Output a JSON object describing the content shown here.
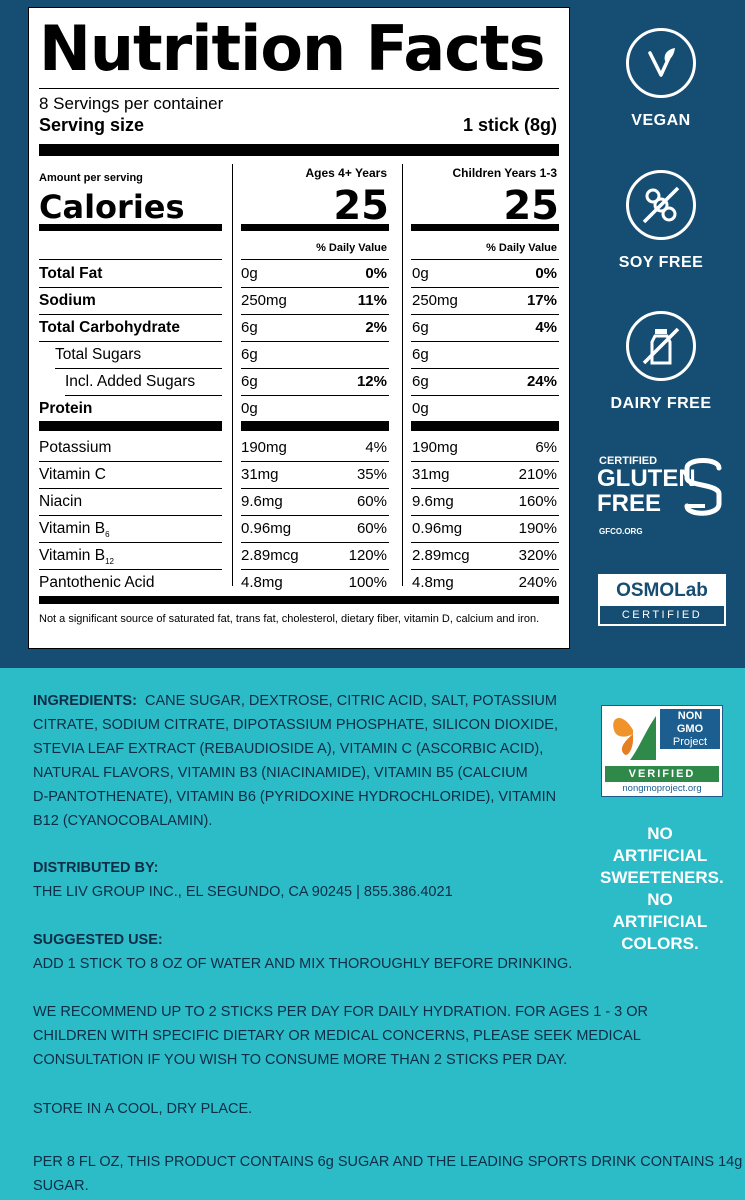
{
  "label": {
    "title": "Nutrition Facts",
    "servings": "8 Servings per container",
    "serving_size_label": "Serving size",
    "serving_size_value": "1 stick (8g)",
    "amount_per_serving": "Amount per serving",
    "calories_label": "Calories",
    "columns": [
      {
        "header": "Ages 4+ Years",
        "calories": "25",
        "dv_header": "% Daily Value"
      },
      {
        "header": "Children Years 1-3",
        "calories": "25",
        "dv_header": "% Daily Value"
      }
    ],
    "rows": [
      {
        "name": "Total Fat",
        "amt1": "0g",
        "pct1": "0%",
        "amt2": "0g",
        "pct2": "0%"
      },
      {
        "name": "Sodium",
        "amt1": "250mg",
        "pct1": "11%",
        "amt2": "250mg",
        "pct2": "17%"
      },
      {
        "name": "Total Carbohydrate",
        "amt1": "6g",
        "pct1": "2%",
        "amt2": "6g",
        "pct2": "4%"
      },
      {
        "name": "Total Sugars",
        "amt1": "6g",
        "pct1": "",
        "amt2": "6g",
        "pct2": ""
      },
      {
        "name": "Incl. Added Sugars",
        "amt1": "6g",
        "pct1": "12%",
        "amt2": "6g",
        "pct2": "24%"
      },
      {
        "name": "Protein",
        "amt1": "0g",
        "pct1": "",
        "amt2": "0g",
        "pct2": ""
      },
      {
        "name": "Potassium",
        "amt1": "190mg",
        "pct1": "4%",
        "amt2": "190mg",
        "pct2": "6%"
      },
      {
        "name": "Vitamin C",
        "amt1": "31mg",
        "pct1": "35%",
        "amt2": "31mg",
        "pct2": "210%"
      },
      {
        "name": "Niacin",
        "amt1": "9.6mg",
        "pct1": "60%",
        "amt2": "9.6mg",
        "pct2": "160%"
      },
      {
        "name": "Vitamin B",
        "sub": "6",
        "amt1": "0.96mg",
        "pct1": "60%",
        "amt2": "0.96mg",
        "pct2": "190%"
      },
      {
        "name": "Vitamin B",
        "sub": "12",
        "amt1": "2.89mcg",
        "pct1": "120%",
        "amt2": "2.89mcg",
        "pct2": "320%"
      },
      {
        "name": "Pantothenic Acid",
        "amt1": "4.8mg",
        "pct1": "100%",
        "amt2": "4.8mg",
        "pct2": "240%"
      }
    ],
    "footnote": "Not a significant source of saturated fat, trans fat, cholesterol, dietary fiber, vitamin D, calcium and iron."
  },
  "badges": {
    "vegan": "VEGAN",
    "soy_free": "SOY FREE",
    "dairy_free": "DAIRY FREE",
    "gf_certified": "CERTIFIED",
    "gf_line1": "GLUTEN",
    "gf_line2": "FREE",
    "gf_site": "GFCO.ORG",
    "osmo_top": "OSMOLab",
    "osmo_bottom": "CERTIFIED",
    "ngmo_line1": "NON",
    "ngmo_line2": "GMO",
    "ngmo_line3": "Project",
    "ngmo_verified": "VERIFIED",
    "ngmo_site": "nongmoproject.org",
    "no_sweeteners_1": "NO ARTIFICIAL",
    "no_sweeteners_2": "SWEETENERS.",
    "no_colors_1": "NO ARTIFICIAL",
    "no_colors_2": "COLORS."
  },
  "info": {
    "ingredients_label": "INGREDIENTS:",
    "ingredients_lines": [
      "CANE SUGAR, DEXTROSE, CITRIC ACID, SALT, POTASSIUM",
      "CITRATE, SODIUM CITRATE, DIPOTASSIUM PHOSPHATE, SILICON DIOXIDE,",
      "STEVIA LEAF EXTRACT (REBAUDIOSIDE A), VITAMIN C (ASCORBIC ACID),",
      "NATURAL FLAVORS, VITAMIN B3 (NIACINAMIDE), VITAMIN B5 (CALCIUM",
      "D-PANTOTHENATE), VITAMIN B6 (PYRIDOXINE HYDROCHLORIDE), VITAMIN",
      "B12 (CYANOCOBALAMIN)."
    ],
    "distributed_label": "DISTRIBUTED BY:",
    "distributed_text": "THE LIV GROUP INC., EL SEGUNDO, CA 90245 | 855.386.4021",
    "use_label": "SUGGESTED USE:",
    "use_text": "ADD 1 STICK TO 8 OZ OF WATER AND MIX THOROUGHLY BEFORE DRINKING.",
    "recommend_lines": [
      "WE RECOMMEND UP TO 2 STICKS PER DAY FOR DAILY HYDRATION. FOR AGES 1 - 3 OR",
      "CHILDREN WITH SPECIFIC DIETARY OR MEDICAL CONCERNS, PLEASE SEEK MEDICAL",
      "CONSULTATION IF YOU WISH TO CONSUME MORE THAN 2 STICKS PER DAY."
    ],
    "storage": "STORE IN A COOL, DRY PLACE.",
    "sugar_note": "PER 8 FL OZ, THIS PRODUCT CONTAINS 6g SUGAR AND THE LEADING SPORTS DRINK CONTAINS 14g SUGAR."
  }
}
